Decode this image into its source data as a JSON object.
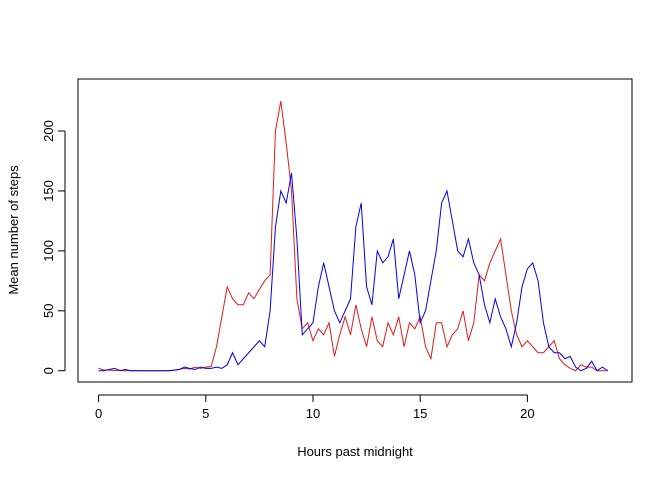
{
  "chart_data": {
    "type": "line",
    "x_label": "Hours past midnight",
    "y_label": "Mean number of steps",
    "x": [
      0,
      0.25,
      0.5,
      0.75,
      1,
      1.25,
      1.5,
      1.75,
      2,
      2.25,
      2.5,
      2.75,
      3,
      3.25,
      3.5,
      3.75,
      4,
      4.25,
      4.5,
      4.75,
      5,
      5.25,
      5.5,
      5.75,
      6,
      6.25,
      6.5,
      6.75,
      7,
      7.25,
      7.5,
      7.75,
      8,
      8.25,
      8.5,
      8.75,
      9,
      9.25,
      9.5,
      9.75,
      10,
      10.25,
      10.5,
      10.75,
      11,
      11.25,
      11.5,
      11.75,
      12,
      12.25,
      12.5,
      12.75,
      13,
      13.25,
      13.5,
      13.75,
      14,
      14.25,
      14.5,
      14.75,
      15,
      15.25,
      15.5,
      15.75,
      16,
      16.25,
      16.5,
      16.75,
      17,
      17.25,
      17.5,
      17.75,
      18,
      18.25,
      18.5,
      18.75,
      19,
      19.25,
      19.5,
      19.75,
      20,
      20.25,
      20.5,
      20.75,
      21,
      21.25,
      21.5,
      21.75,
      22,
      22.25,
      22.5,
      22.75,
      23,
      23.25,
      23.5,
      23.75
    ],
    "series": [
      {
        "color": "#e31a1c",
        "values": [
          2,
          0.5,
          0.5,
          0.2,
          0.4,
          0,
          0.2,
          0,
          0,
          0,
          0,
          0,
          0,
          0,
          0.3,
          1,
          2,
          1.5,
          3,
          2,
          3,
          3.5,
          20,
          45,
          70,
          60,
          55,
          55,
          65,
          60,
          68,
          75,
          80,
          200,
          225,
          190,
          150,
          60,
          35,
          40,
          25,
          35,
          30,
          40,
          12,
          30,
          45,
          30,
          55,
          35,
          20,
          45,
          25,
          20,
          40,
          30,
          45,
          20,
          40,
          35,
          45,
          20,
          10,
          40,
          40,
          20,
          30,
          35,
          50,
          25,
          40,
          80,
          75,
          90,
          100,
          110,
          80,
          50,
          30,
          20,
          25,
          20,
          15,
          15,
          20,
          25,
          10,
          5,
          2,
          0,
          5,
          3,
          3,
          0,
          0,
          0
        ]
      },
      {
        "color": "#0000ee",
        "values": [
          0,
          0,
          1,
          2,
          0,
          1,
          0,
          0,
          0,
          0,
          0,
          0,
          0,
          0,
          0.5,
          1,
          3,
          2,
          1,
          3,
          2,
          2,
          3,
          2,
          5,
          15,
          5,
          10,
          15,
          20,
          25,
          20,
          50,
          120,
          150,
          140,
          165,
          110,
          30,
          35,
          40,
          70,
          90,
          70,
          50,
          40,
          50,
          60,
          120,
          140,
          70,
          55,
          100,
          90,
          95,
          110,
          60,
          80,
          100,
          80,
          40,
          50,
          75,
          100,
          140,
          150,
          125,
          100,
          95,
          110,
          90,
          80,
          55,
          40,
          60,
          45,
          35,
          20,
          40,
          70,
          85,
          90,
          75,
          40,
          20,
          15,
          15,
          10,
          12,
          3,
          0,
          2,
          8,
          0,
          3,
          0
        ]
      }
    ],
    "xlim": [
      -0.96,
      24.88
    ],
    "ylim": [
      -9.4,
      243.4
    ],
    "xticks": [
      0,
      5,
      10,
      15,
      20
    ],
    "yticks": [
      0,
      50,
      100,
      150,
      200
    ]
  }
}
